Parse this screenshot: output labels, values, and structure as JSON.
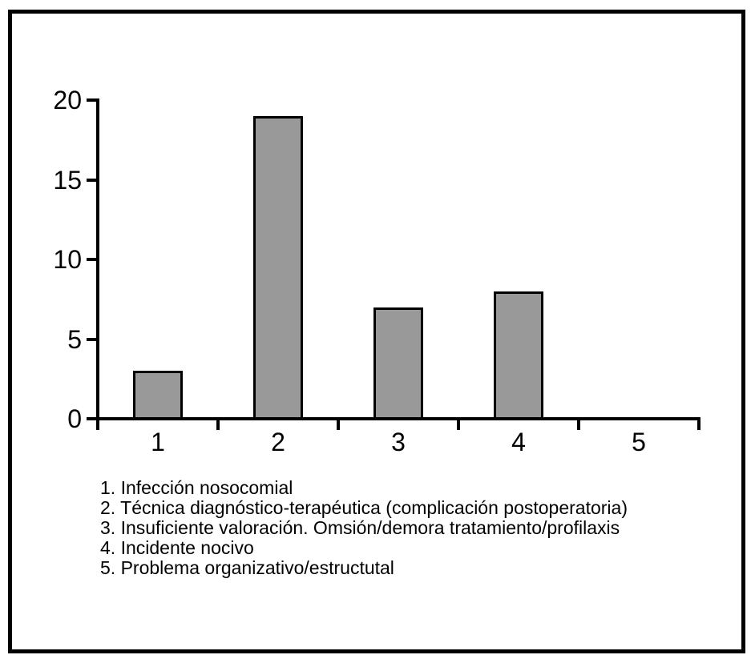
{
  "chart_data": {
    "type": "bar",
    "categories": [
      "1",
      "2",
      "3",
      "4",
      "5"
    ],
    "values": [
      3,
      19,
      7,
      8,
      0
    ],
    "title": "",
    "xlabel": "",
    "ylabel": "",
    "ylim": [
      0,
      20
    ],
    "yticks": [
      0,
      5,
      10,
      15,
      20
    ],
    "grid": false,
    "legend_position": "below",
    "bar_color": "#999999",
    "bar_border_color": "#000000",
    "axis_color": "#000000",
    "legend_lines": [
      "1. Infección nosocomial",
      "2. Técnica diagnóstico-terapéutica (complicación postoperatoria)",
      "3. Insuficiente valoración. Omsión/demora tratamiento/profilaxis",
      "4. Incidente nocivo",
      "5. Problema organizativo/estructutal"
    ]
  }
}
